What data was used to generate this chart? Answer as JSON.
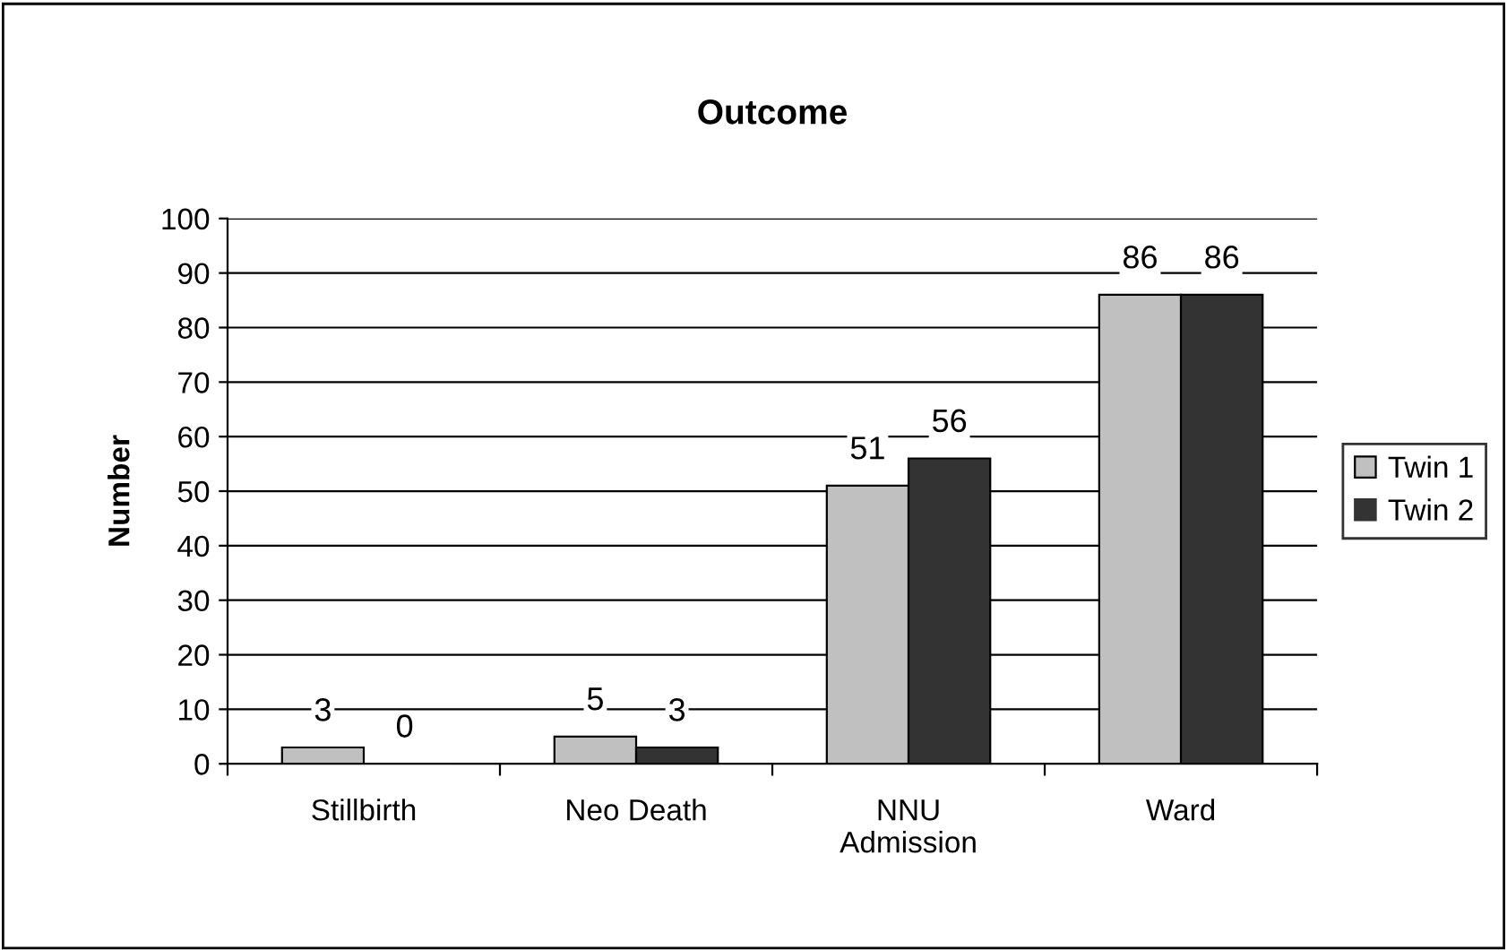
{
  "chart_data": {
    "type": "bar",
    "title": "Outcome",
    "ylabel": "Number",
    "categories": [
      "Stillbirth",
      "Neo Death",
      "NNU\nAdmission",
      "Ward"
    ],
    "series": [
      {
        "name": "Twin 1",
        "color": "#c0c0c0",
        "values": [
          3,
          5,
          51,
          86
        ]
      },
      {
        "name": "Twin 2",
        "color": "#333333",
        "values": [
          0,
          3,
          56,
          86
        ]
      }
    ],
    "ylim": [
      0,
      100
    ],
    "yticks": [
      0,
      10,
      20,
      30,
      40,
      50,
      60,
      70,
      80,
      90,
      100
    ],
    "grid": "y",
    "legend": "right",
    "data_labels": true
  }
}
